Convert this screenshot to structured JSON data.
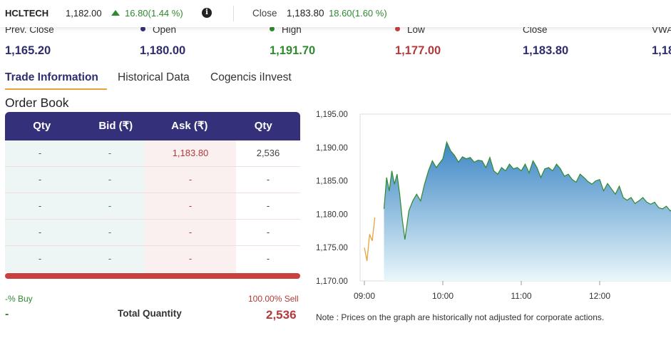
{
  "header": {
    "symbol": "HCLTECH",
    "ltp": "1,182.00",
    "change": "16.80(1.44 %)",
    "info_icon": "info-icon",
    "close_label": "Close",
    "close_value": "1,183.80",
    "close_change": "18.60(1.60 %)"
  },
  "stats": [
    {
      "label": "Prev. Close",
      "value": "1,165.20",
      "dot": "",
      "color": "#2e2d6e"
    },
    {
      "label": "Open",
      "value": "1,180.00",
      "dot": "#34317a",
      "color": "#2e2d6e"
    },
    {
      "label": "High",
      "value": "1,191.70",
      "dot": "#2f8a2f",
      "color": "#2f8a2f"
    },
    {
      "label": "Low",
      "value": "1,177.00",
      "dot": "#c9413f",
      "color": "#b23a3a"
    },
    {
      "label": "Close",
      "value": "1,183.80",
      "dot": "",
      "color": "#2e2d6e"
    },
    {
      "label": "VWA",
      "value": "1,18",
      "dot": "",
      "color": "#2e2d6e"
    }
  ],
  "tabs": [
    {
      "label": "Trade Information",
      "active": true
    },
    {
      "label": "Historical Data",
      "active": false
    },
    {
      "label": "Cogencis iInvest",
      "active": false
    }
  ],
  "order_book": {
    "title": "Order Book",
    "columns": [
      "Qty",
      "Bid (₹)",
      "Ask (₹)",
      "Qty"
    ],
    "rows": [
      [
        "-",
        "-",
        "1,183.80",
        "2,536"
      ],
      [
        "-",
        "-",
        "-",
        "-"
      ],
      [
        "-",
        "-",
        "-",
        "-"
      ],
      [
        "-",
        "-",
        "-",
        "-"
      ],
      [
        "-",
        "-",
        "-",
        "-"
      ]
    ],
    "buy_pct": "-% Buy",
    "sell_pct": "100.00% Sell",
    "buy_qty": "-",
    "total_label": "Total Quantity",
    "sell_qty": "2,536"
  },
  "chart_data": {
    "type": "area",
    "y_ticks": [
      "1,195.00",
      "1,190.00",
      "1,185.00",
      "1,180.00",
      "1,175.00",
      "1,170.00"
    ],
    "x_ticks": [
      "09:00",
      "10:00",
      "11:00",
      "12:00",
      "1"
    ],
    "ylim": [
      1170,
      1195
    ],
    "xlim": [
      "09:00",
      "13:00"
    ],
    "pre_open_series": {
      "x": [
        "09:00",
        "09:02",
        "09:04",
        "09:06",
        "09:08"
      ],
      "values": [
        1175.0,
        1173.0,
        1177.0,
        1176.0,
        1179.5
      ]
    },
    "series": {
      "x": [
        "09:15",
        "09:17",
        "09:19",
        "09:21",
        "09:23",
        "09:25",
        "09:27",
        "09:29",
        "09:31",
        "09:34",
        "09:37",
        "09:40",
        "09:43",
        "09:46",
        "09:49",
        "09:52",
        "09:55",
        "10:00",
        "10:03",
        "10:06",
        "10:09",
        "10:12",
        "10:15",
        "10:18",
        "10:21",
        "10:24",
        "10:27",
        "10:30",
        "10:33",
        "10:36",
        "10:39",
        "10:42",
        "10:45",
        "10:48",
        "10:51",
        "10:54",
        "10:57",
        "11:00",
        "11:03",
        "11:06",
        "11:09",
        "11:12",
        "11:15",
        "11:18",
        "11:21",
        "11:24",
        "11:27",
        "11:30",
        "11:33",
        "11:36",
        "11:39",
        "11:42",
        "11:45",
        "11:48",
        "11:51",
        "11:54",
        "11:57",
        "12:00",
        "12:03",
        "12:06",
        "12:09",
        "12:12",
        "12:15",
        "12:18",
        "12:21",
        "12:24",
        "12:27",
        "12:30",
        "12:33",
        "12:36",
        "12:39",
        "12:42",
        "12:45",
        "12:48",
        "12:51",
        "12:54",
        "12:57",
        "13:00"
      ],
      "values": [
        1180.8,
        1185.5,
        1183.5,
        1186.5,
        1184.5,
        1186.0,
        1183.0,
        1179.2,
        1176.2,
        1180.5,
        1182.0,
        1183.0,
        1182.0,
        1184.5,
        1186.5,
        1188.0,
        1187.0,
        1188.3,
        1190.8,
        1189.5,
        1188.8,
        1187.8,
        1188.6,
        1188.3,
        1188.5,
        1187.8,
        1188.1,
        1188.0,
        1187.0,
        1188.5,
        1186.5,
        1186.0,
        1187.0,
        1186.5,
        1187.5,
        1186.8,
        1187.0,
        1186.5,
        1187.5,
        1186.2,
        1188.0,
        1187.0,
        1185.5,
        1186.8,
        1187.0,
        1186.5,
        1187.5,
        1186.8,
        1185.7,
        1186.0,
        1185.2,
        1184.8,
        1186.0,
        1185.5,
        1184.9,
        1184.5,
        1185.0,
        1185.2,
        1183.5,
        1184.6,
        1183.8,
        1183.0,
        1184.2,
        1182.5,
        1182.1,
        1182.5,
        1181.6,
        1182.0,
        1182.5,
        1181.8,
        1181.5,
        1181.8,
        1181.0,
        1180.8,
        1181.2,
        1180.5,
        1181.0,
        1180.6
      ]
    },
    "colors": {
      "line": "#2f8a2f",
      "pre_open": "#e8a33c",
      "fill_top": "#3d86c4",
      "fill_bottom": "#e9f7fb"
    }
  },
  "note": "Note : Prices on the graph are historically not adjusted for corporate actions."
}
